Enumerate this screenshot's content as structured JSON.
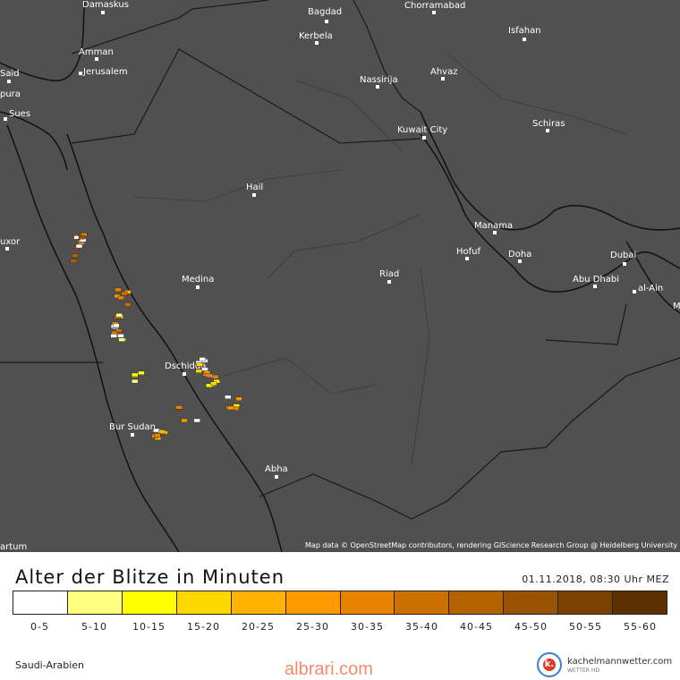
{
  "map": {
    "attribution": "Map data © OpenStreetMap contributors, rendering GIScience Research Group @ Heidelberg University",
    "cities": [
      {
        "name": "Damaskus"
      },
      {
        "name": "Bagdad"
      },
      {
        "name": "Chorramabad"
      },
      {
        "name": "Kerbela"
      },
      {
        "name": "Isfahan"
      },
      {
        "name": "Amman"
      },
      {
        "name": "Jerusalem"
      },
      {
        "name": "Said"
      },
      {
        "name": "Nassirija"
      },
      {
        "name": "Ahvaz"
      },
      {
        "name": "pura"
      },
      {
        "name": "Sues"
      },
      {
        "name": "Kuwait City"
      },
      {
        "name": "Schiras"
      },
      {
        "name": "Hail"
      },
      {
        "name": "Manama"
      },
      {
        "name": "uxor"
      },
      {
        "name": "Hofuf"
      },
      {
        "name": "Doha"
      },
      {
        "name": "Dubai"
      },
      {
        "name": "Riad"
      },
      {
        "name": "Medina"
      },
      {
        "name": "Abu Dhabi"
      },
      {
        "name": "al-Ain"
      },
      {
        "name": "M"
      },
      {
        "name": "Dschidda"
      },
      {
        "name": "Bur Sudan"
      },
      {
        "name": "Abha"
      },
      {
        "name": "artum"
      }
    ]
  },
  "legend": {
    "title": "Alter der Blitze in Minuten",
    "datetime": "01.11.2018, 08:30 Uhr MEZ",
    "region": "Saudi-Arabien",
    "watermark": "albrari.com",
    "brand_name": "kachelmannwetter.com",
    "brand_sub": "WETTER HD",
    "brand_logo_letter": "k.",
    "bins": [
      {
        "label": "0-5",
        "color": "#ffffff"
      },
      {
        "label": "5-10",
        "color": "#ffff80"
      },
      {
        "label": "10-15",
        "color": "#ffff00"
      },
      {
        "label": "15-20",
        "color": "#ffd700"
      },
      {
        "label": "20-25",
        "color": "#ffb300"
      },
      {
        "label": "25-30",
        "color": "#ff9900"
      },
      {
        "label": "30-35",
        "color": "#e88300"
      },
      {
        "label": "35-40",
        "color": "#cc7000"
      },
      {
        "label": "40-45",
        "color": "#b36200"
      },
      {
        "label": "45-50",
        "color": "#995200"
      },
      {
        "label": "50-55",
        "color": "#7a4100"
      },
      {
        "label": "55-60",
        "color": "#5c3000"
      }
    ]
  }
}
